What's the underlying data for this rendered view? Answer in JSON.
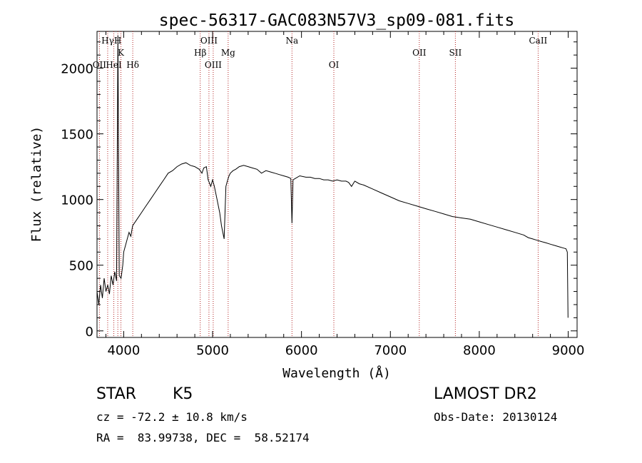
{
  "chart_data": {
    "type": "line",
    "title": "spec-56317-GAC083N57V3_sp09-081.fits",
    "xlabel": "Wavelength (Å)",
    "ylabel": "Flux (relative)",
    "xlim": [
      3700,
      9100
    ],
    "ylim": [
      -50,
      2280
    ],
    "xticks": [
      4000,
      5000,
      6000,
      7000,
      8000,
      9000
    ],
    "yticks": [
      0,
      500,
      1000,
      1500,
      2000
    ],
    "grid": false,
    "line_color": "#000000",
    "marker_color": "#b22222",
    "lines": [
      {
        "label": "OII",
        "x": 3727,
        "row": 3
      },
      {
        "label": "Hγ",
        "x": 3820,
        "row": 1
      },
      {
        "label": "HeI",
        "x": 3889,
        "row": 3
      },
      {
        "label": "H",
        "x": 3934,
        "row": 1
      },
      {
        "label": "K",
        "x": 3969,
        "row": 2
      },
      {
        "label": "Hδ",
        "x": 4102,
        "row": 3
      },
      {
        "label": "Hβ",
        "x": 4861,
        "row": 2
      },
      {
        "label": "OIII",
        "x": 4959,
        "row": 1
      },
      {
        "label": "OIII",
        "x": 5007,
        "row": 3
      },
      {
        "label": "Mg",
        "x": 5175,
        "row": 2
      },
      {
        "label": "Na",
        "x": 5893,
        "row": 1
      },
      {
        "label": "OI",
        "x": 6364,
        "row": 3
      },
      {
        "label": "OII",
        "x": 7325,
        "row": 2
      },
      {
        "label": "SII",
        "x": 7731,
        "row": 2
      },
      {
        "label": "CaII",
        "x": 8662,
        "row": 1
      }
    ],
    "series": [
      {
        "x": [
          3700,
          3720,
          3740,
          3760,
          3780,
          3800,
          3820,
          3840,
          3860,
          3880,
          3900,
          3920,
          3935,
          3950,
          3970,
          3990,
          4000,
          4020,
          4040,
          4060,
          4080,
          4100,
          4150,
          4200,
          4250,
          4300,
          4350,
          4400,
          4450,
          4500,
          4550,
          4600,
          4650,
          4700,
          4750,
          4800,
          4850,
          4880,
          4900,
          4930,
          4950,
          4980,
          5000,
          5020,
          5050,
          5080,
          5100,
          5130,
          5150,
          5170,
          5185,
          5200,
          5230,
          5260,
          5300,
          5350,
          5400,
          5450,
          5500,
          5550,
          5600,
          5650,
          5700,
          5750,
          5800,
          5850,
          5880,
          5893,
          5905,
          5930,
          5980,
          6050,
          6100,
          6150,
          6200,
          6250,
          6300,
          6350,
          6400,
          6450,
          6500,
          6530,
          6563,
          6600,
          6650,
          6700,
          6800,
          6900,
          7000,
          7100,
          7200,
          7300,
          7400,
          7500,
          7600,
          7700,
          7800,
          7900,
          8000,
          8100,
          8200,
          8300,
          8400,
          8500,
          8550,
          8600,
          8650,
          8700,
          8750,
          8800,
          8850,
          8900,
          8950,
          8975,
          8990,
          8998
        ],
        "y": [
          300,
          200,
          350,
          250,
          400,
          300,
          350,
          280,
          420,
          350,
          450,
          380,
          2250,
          420,
          400,
          500,
          600,
          650,
          700,
          750,
          720,
          800,
          850,
          900,
          950,
          1000,
          1050,
          1100,
          1150,
          1200,
          1220,
          1250,
          1270,
          1280,
          1260,
          1250,
          1230,
          1200,
          1240,
          1250,
          1150,
          1100,
          1150,
          1100,
          1000,
          900,
          800,
          700,
          1100,
          1150,
          1180,
          1200,
          1220,
          1230,
          1250,
          1260,
          1250,
          1240,
          1230,
          1200,
          1220,
          1210,
          1200,
          1190,
          1180,
          1170,
          1160,
          820,
          1150,
          1160,
          1180,
          1170,
          1170,
          1160,
          1160,
          1150,
          1150,
          1140,
          1150,
          1140,
          1140,
          1130,
          1100,
          1140,
          1120,
          1110,
          1080,
          1050,
          1020,
          990,
          970,
          950,
          930,
          910,
          890,
          870,
          860,
          850,
          830,
          810,
          790,
          770,
          750,
          730,
          710,
          700,
          690,
          680,
          670,
          660,
          650,
          640,
          630,
          625,
          600,
          100
        ]
      }
    ]
  },
  "info": {
    "object_class": "STAR",
    "subclass": "K5",
    "survey": "LAMOST DR2",
    "redshift": "cz = -72.2 ± 10.8 km/s",
    "obs_date": "Obs-Date: 20130124",
    "coords": "RA =  83.99738, DEC =  58.52174"
  }
}
